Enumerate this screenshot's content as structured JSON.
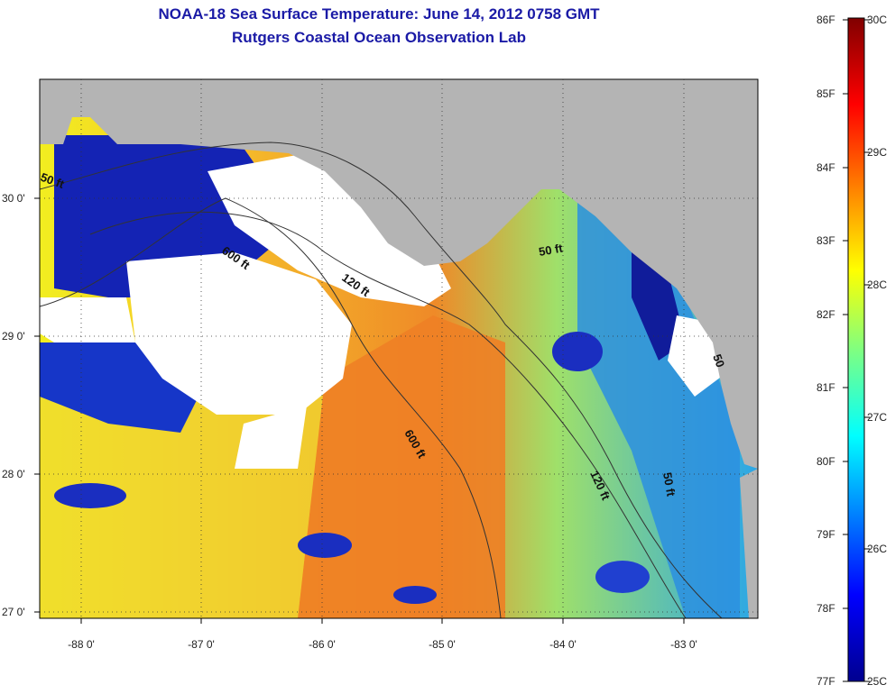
{
  "title": {
    "line1": "NOAA-18 Sea Surface Temperature:  June 14, 2012 0758 GMT",
    "line2": "Rutgers Coastal Ocean Observation Lab"
  },
  "colors": {
    "land": "#b4b4b4",
    "cloud": "#ffffff",
    "title_text": "#1a1aa6"
  },
  "map": {
    "lon_ticks": [
      "-88 0'",
      "-87 0'",
      "-86 0'",
      "-85 0'",
      "-84 0'",
      "-83 0'"
    ],
    "lat_ticks": [
      "30 0'",
      "29 0'",
      "28 0'",
      "27 0'"
    ],
    "contour_labels": [
      {
        "text": "50 ft"
      },
      {
        "text": "600 ft"
      },
      {
        "text": "120 ft"
      },
      {
        "text": "50 ft"
      },
      {
        "text": "600 ft"
      },
      {
        "text": "120 ft"
      },
      {
        "text": "50 ft"
      },
      {
        "text": "50"
      }
    ]
  },
  "colorbar": {
    "fahrenheit_labels": [
      "86F",
      "85F",
      "84F",
      "83F",
      "82F",
      "81F",
      "80F",
      "79F",
      "78F",
      "77F"
    ],
    "celsius_labels": [
      "30C",
      "29C",
      "28C",
      "27C",
      "26C",
      "25C"
    ]
  }
}
